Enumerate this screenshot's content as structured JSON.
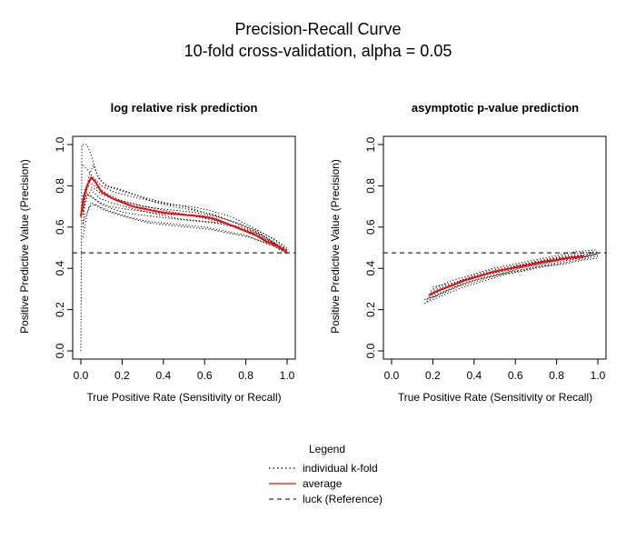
{
  "figure": {
    "title": "Precision-Recall Curve",
    "subtitle": "10-fold cross-validation, alpha = 0.05"
  },
  "legend": {
    "title": "Legend",
    "items": [
      {
        "label": "individual k-fold",
        "style": "dotted",
        "color": "#000000"
      },
      {
        "label": "average",
        "style": "solid",
        "color": "#ff0000"
      },
      {
        "label": "luck (Reference)",
        "style": "dashed",
        "color": "#000000"
      }
    ]
  },
  "chart_data": [
    {
      "type": "line",
      "title": "log relative risk prediction",
      "xlabel": "True Positive Rate (Sensitivity or Recall)",
      "ylabel": "Positive Predictive Value (Precision)",
      "xlim": [
        0,
        1
      ],
      "ylim": [
        0,
        1
      ],
      "xticks": [
        "0.0",
        "0.2",
        "0.4",
        "0.6",
        "0.8",
        "1.0"
      ],
      "yticks": [
        "0.0",
        "0.2",
        "0.4",
        "0.6",
        "0.8",
        "1.0"
      ],
      "reference_y": 0.475,
      "series": [
        {
          "name": "average",
          "color": "#ff0000",
          "x": [
            0.0,
            0.01,
            0.03,
            0.05,
            0.07,
            0.1,
            0.15,
            0.2,
            0.25,
            0.3,
            0.35,
            0.4,
            0.45,
            0.5,
            0.55,
            0.6,
            0.65,
            0.7,
            0.75,
            0.8,
            0.85,
            0.9,
            0.95,
            0.98,
            1.0
          ],
          "y": [
            0.65,
            0.73,
            0.8,
            0.84,
            0.82,
            0.77,
            0.74,
            0.72,
            0.7,
            0.69,
            0.68,
            0.67,
            0.665,
            0.66,
            0.655,
            0.65,
            0.64,
            0.62,
            0.6,
            0.58,
            0.56,
            0.53,
            0.51,
            0.49,
            0.48
          ]
        }
      ],
      "folds": [
        {
          "x": [
            0.0,
            0.005,
            0.01,
            0.02,
            0.03,
            0.05,
            0.08,
            0.12,
            0.18,
            0.25,
            0.32,
            0.4,
            0.5,
            0.6,
            0.7,
            0.8,
            0.9,
            1.0
          ],
          "y": [
            0.0,
            1.0,
            1.0,
            1.0,
            1.0,
            0.95,
            0.85,
            0.8,
            0.78,
            0.76,
            0.74,
            0.72,
            0.7,
            0.67,
            0.64,
            0.6,
            0.55,
            0.48
          ]
        },
        {
          "x": [
            0.01,
            0.02,
            0.04,
            0.06,
            0.09,
            0.13,
            0.2,
            0.28,
            0.36,
            0.45,
            0.55,
            0.65,
            0.75,
            0.85,
            0.93,
            1.0
          ],
          "y": [
            0.6,
            0.72,
            0.85,
            0.9,
            0.83,
            0.8,
            0.78,
            0.75,
            0.72,
            0.7,
            0.68,
            0.66,
            0.62,
            0.58,
            0.53,
            0.47
          ]
        },
        {
          "x": [
            0.01,
            0.03,
            0.05,
            0.08,
            0.12,
            0.18,
            0.25,
            0.33,
            0.42,
            0.52,
            0.62,
            0.72,
            0.82,
            0.91,
            1.0
          ],
          "y": [
            0.55,
            0.66,
            0.72,
            0.7,
            0.68,
            0.66,
            0.64,
            0.62,
            0.61,
            0.6,
            0.59,
            0.57,
            0.55,
            0.52,
            0.49
          ]
        },
        {
          "x": [
            0.01,
            0.03,
            0.06,
            0.1,
            0.15,
            0.22,
            0.3,
            0.38,
            0.47,
            0.56,
            0.66,
            0.76,
            0.86,
            0.94,
            1.0
          ],
          "y": [
            0.75,
            0.8,
            0.79,
            0.76,
            0.74,
            0.72,
            0.7,
            0.69,
            0.68,
            0.67,
            0.65,
            0.62,
            0.58,
            0.54,
            0.5
          ]
        },
        {
          "x": [
            0.01,
            0.02,
            0.05,
            0.09,
            0.14,
            0.2,
            0.27,
            0.35,
            0.44,
            0.53,
            0.63,
            0.73,
            0.83,
            0.92,
            1.0
          ],
          "y": [
            0.7,
            0.76,
            0.75,
            0.72,
            0.7,
            0.69,
            0.68,
            0.67,
            0.66,
            0.66,
            0.64,
            0.61,
            0.57,
            0.53,
            0.48
          ]
        },
        {
          "x": [
            0.01,
            0.04,
            0.07,
            0.11,
            0.16,
            0.23,
            0.31,
            0.4,
            0.5,
            0.6,
            0.7,
            0.8,
            0.9,
            1.0
          ],
          "y": [
            0.62,
            0.7,
            0.71,
            0.69,
            0.67,
            0.65,
            0.63,
            0.62,
            0.61,
            0.6,
            0.58,
            0.56,
            0.52,
            0.48
          ]
        },
        {
          "x": [
            0.01,
            0.03,
            0.06,
            0.1,
            0.16,
            0.24,
            0.33,
            0.43,
            0.53,
            0.63,
            0.73,
            0.83,
            0.92,
            1.0
          ],
          "y": [
            0.9,
            0.88,
            0.84,
            0.8,
            0.77,
            0.75,
            0.73,
            0.71,
            0.7,
            0.68,
            0.65,
            0.6,
            0.55,
            0.49
          ]
        },
        {
          "x": [
            0.01,
            0.03,
            0.05,
            0.09,
            0.14,
            0.21,
            0.29,
            0.38,
            0.48,
            0.58,
            0.68,
            0.78,
            0.88,
            0.96,
            1.0
          ],
          "y": [
            0.68,
            0.74,
            0.78,
            0.74,
            0.72,
            0.7,
            0.68,
            0.66,
            0.64,
            0.63,
            0.62,
            0.6,
            0.56,
            0.51,
            0.49
          ]
        },
        {
          "x": [
            0.01,
            0.02,
            0.04,
            0.08,
            0.13,
            0.19,
            0.27,
            0.36,
            0.46,
            0.56,
            0.66,
            0.76,
            0.86,
            0.95,
            1.0
          ],
          "y": [
            0.66,
            0.78,
            0.82,
            0.79,
            0.76,
            0.73,
            0.71,
            0.69,
            0.67,
            0.65,
            0.63,
            0.6,
            0.56,
            0.5,
            0.47
          ]
        },
        {
          "x": [
            0.01,
            0.03,
            0.06,
            0.1,
            0.15,
            0.21,
            0.28,
            0.36,
            0.45,
            0.55,
            0.65,
            0.75,
            0.85,
            0.94,
            1.0
          ],
          "y": [
            0.72,
            0.76,
            0.74,
            0.71,
            0.69,
            0.67,
            0.66,
            0.65,
            0.64,
            0.63,
            0.62,
            0.6,
            0.57,
            0.52,
            0.48
          ]
        }
      ]
    },
    {
      "type": "line",
      "title": "asymptotic p-value prediction",
      "xlabel": "True Positive Rate (Sensitivity or Recall)",
      "ylabel": "Positive Predictive Value (Precision)",
      "xlim": [
        0,
        1
      ],
      "ylim": [
        0,
        1
      ],
      "xticks": [
        "0.0",
        "0.2",
        "0.4",
        "0.6",
        "0.8",
        "1.0"
      ],
      "yticks": [
        "0.0",
        "0.2",
        "0.4",
        "0.6",
        "0.8",
        "1.0"
      ],
      "reference_y": 0.475,
      "series": [
        {
          "name": "average",
          "color": "#ff0000",
          "x": [
            0.18,
            0.22,
            0.26,
            0.3,
            0.35,
            0.4,
            0.45,
            0.5,
            0.55,
            0.6,
            0.65,
            0.7,
            0.75,
            0.8,
            0.85,
            0.9,
            0.93
          ],
          "y": [
            0.27,
            0.29,
            0.305,
            0.32,
            0.34,
            0.355,
            0.37,
            0.385,
            0.395,
            0.405,
            0.415,
            0.425,
            0.435,
            0.44,
            0.45,
            0.455,
            0.46
          ]
        }
      ],
      "folds": [
        {
          "x": [
            0.16,
            0.25,
            0.35,
            0.45,
            0.55,
            0.65,
            0.75,
            0.85,
            0.95,
            1.0
          ],
          "y": [
            0.23,
            0.27,
            0.31,
            0.34,
            0.37,
            0.39,
            0.41,
            0.43,
            0.45,
            0.46
          ]
        },
        {
          "x": [
            0.17,
            0.26,
            0.36,
            0.46,
            0.56,
            0.66,
            0.76,
            0.86,
            0.96,
            1.0
          ],
          "y": [
            0.25,
            0.29,
            0.33,
            0.36,
            0.38,
            0.4,
            0.42,
            0.44,
            0.46,
            0.47
          ]
        },
        {
          "x": [
            0.18,
            0.27,
            0.37,
            0.47,
            0.57,
            0.67,
            0.77,
            0.87,
            0.97,
            1.0
          ],
          "y": [
            0.27,
            0.31,
            0.35,
            0.38,
            0.4,
            0.42,
            0.44,
            0.46,
            0.47,
            0.48
          ]
        },
        {
          "x": [
            0.19,
            0.28,
            0.38,
            0.48,
            0.58,
            0.68,
            0.78,
            0.88,
            0.98
          ],
          "y": [
            0.29,
            0.32,
            0.36,
            0.39,
            0.41,
            0.43,
            0.45,
            0.47,
            0.48
          ]
        },
        {
          "x": [
            0.2,
            0.29,
            0.39,
            0.49,
            0.59,
            0.69,
            0.79,
            0.89,
            0.99
          ],
          "y": [
            0.3,
            0.34,
            0.37,
            0.4,
            0.42,
            0.44,
            0.46,
            0.48,
            0.49
          ]
        },
        {
          "x": [
            0.17,
            0.24,
            0.33,
            0.43,
            0.53,
            0.63,
            0.73,
            0.83,
            0.93,
            1.0
          ],
          "y": [
            0.24,
            0.28,
            0.32,
            0.35,
            0.37,
            0.39,
            0.41,
            0.42,
            0.44,
            0.45
          ]
        },
        {
          "x": [
            0.18,
            0.25,
            0.34,
            0.44,
            0.54,
            0.64,
            0.74,
            0.84,
            0.94,
            1.0
          ],
          "y": [
            0.26,
            0.3,
            0.34,
            0.37,
            0.39,
            0.41,
            0.43,
            0.45,
            0.46,
            0.47
          ]
        },
        {
          "x": [
            0.19,
            0.27,
            0.36,
            0.46,
            0.56,
            0.66,
            0.76,
            0.86,
            0.96
          ],
          "y": [
            0.28,
            0.31,
            0.34,
            0.37,
            0.39,
            0.41,
            0.43,
            0.45,
            0.46
          ]
        },
        {
          "x": [
            0.2,
            0.3,
            0.4,
            0.5,
            0.6,
            0.7,
            0.8,
            0.9,
            1.0
          ],
          "y": [
            0.31,
            0.33,
            0.36,
            0.38,
            0.41,
            0.43,
            0.45,
            0.46,
            0.48
          ]
        },
        {
          "x": [
            0.16,
            0.23,
            0.32,
            0.42,
            0.52,
            0.62,
            0.72,
            0.82,
            0.92,
            0.99
          ],
          "y": [
            0.25,
            0.27,
            0.31,
            0.34,
            0.37,
            0.4,
            0.42,
            0.44,
            0.45,
            0.47
          ]
        }
      ]
    }
  ]
}
